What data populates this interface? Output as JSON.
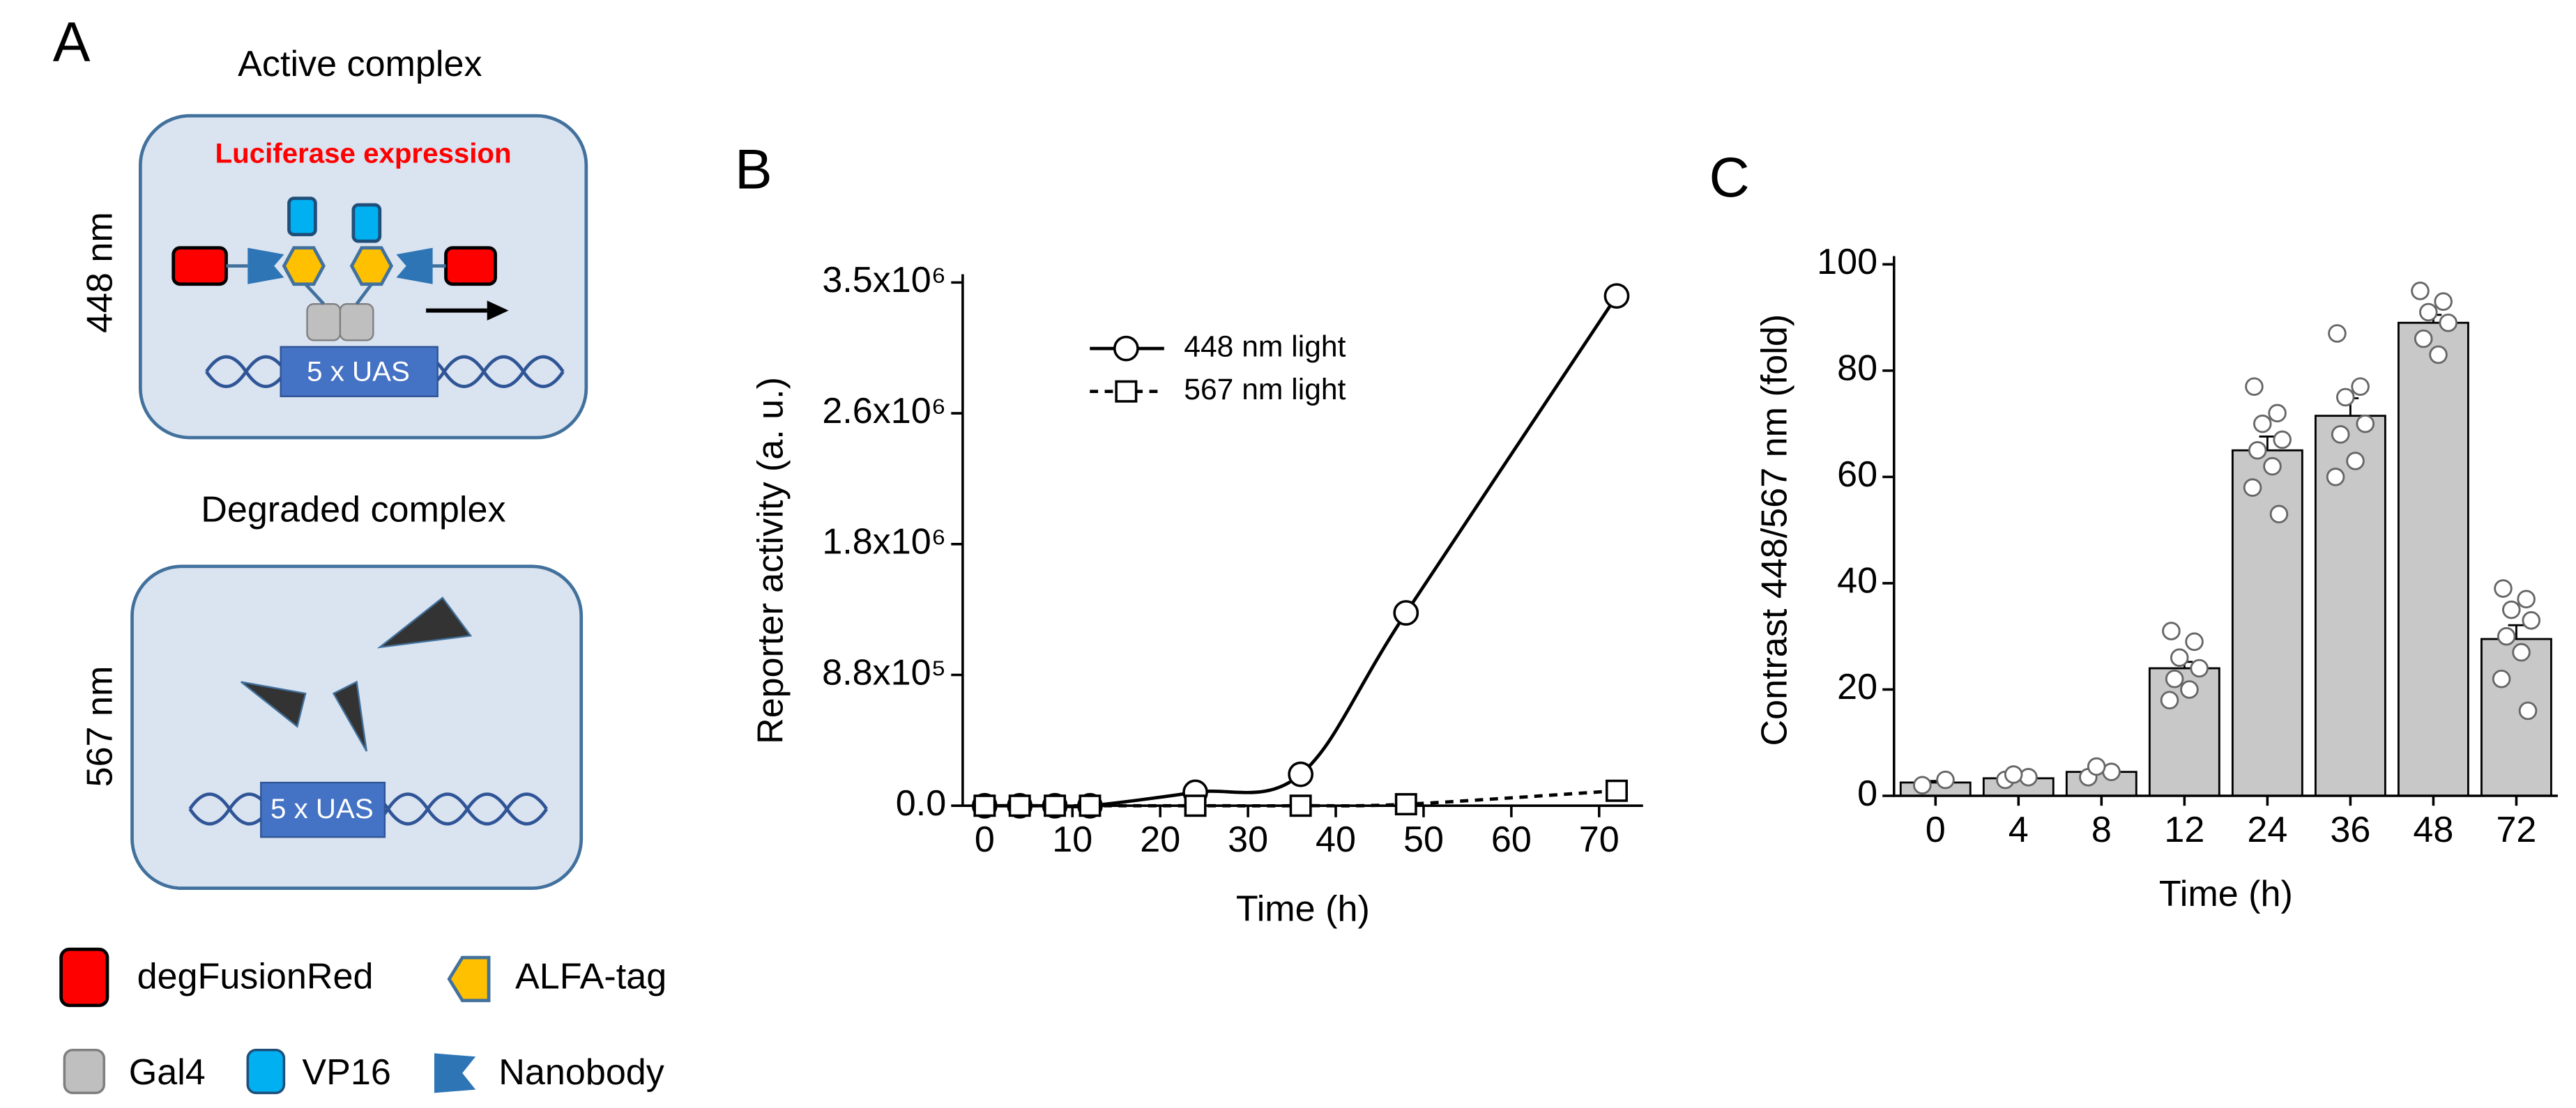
{
  "diagram": {
    "label": "A",
    "active_title": "Active complex",
    "active_wavelength": "448 nm",
    "expression": "Luciferase expression",
    "active_promoter": "5 x UAS",
    "degraded_title": "Degraded complex",
    "degraded_wavelength": "567 nm",
    "degraded_promoter": "5 x UAS",
    "legend": [
      "degFusionRed",
      "ALFA-tag",
      "Gal4",
      "VP16",
      "Nanobody"
    ]
  },
  "chart_data": [
    {
      "type": "line",
      "label": "B",
      "x_label": "Time (h)",
      "y_label": "Reporter activity (a. u.)",
      "x": [
        0,
        4,
        8,
        12,
        24,
        36,
        48,
        72
      ],
      "series": [
        {
          "name": "448 nm light",
          "color": "#000000",
          "marker": "circle",
          "line_style": "solid",
          "values": [
            0,
            0,
            0,
            0,
            90000,
            210000,
            1290000,
            3410000
          ]
        },
        {
          "name": "567 nm light",
          "color": "#000000",
          "marker": "square",
          "line_style": "dashed",
          "values": [
            0,
            0,
            0,
            0,
            0,
            0,
            10000,
            100000
          ]
        }
      ],
      "xlim": [
        -2.5,
        75
      ],
      "xticks": [
        0,
        10,
        20,
        30,
        40,
        50,
        60,
        70
      ],
      "ylim": [
        0,
        3500000
      ],
      "yticks": [
        {
          "value": 0,
          "label": "0.0"
        },
        {
          "value": 875000,
          "label": "8.8x10⁵"
        },
        {
          "value": 1750000,
          "label": "1.8x10⁶"
        },
        {
          "value": 2625000,
          "label": "2.6x10⁶"
        },
        {
          "value": 3500000,
          "label": "3.5x10⁶"
        }
      ],
      "legend": "upper center"
    },
    {
      "type": "bar",
      "label": "C",
      "x_label": "Time (h)",
      "y_label": "Contrast 448/567 nm (fold)",
      "categories": [
        "0",
        "4",
        "8",
        "12",
        "24",
        "36",
        "48",
        "72"
      ],
      "values": [
        2.5,
        3.3,
        4.5,
        24,
        65,
        71.5,
        89,
        29.5
      ],
      "errors": [
        0.3,
        0.3,
        0.4,
        1.2,
        2.6,
        3.3,
        1.5,
        2.6
      ],
      "points": [
        [
          2,
          3
        ],
        [
          3,
          3.5,
          4
        ],
        [
          3.5,
          4.5,
          5.5
        ],
        [
          31,
          29,
          26,
          24,
          22,
          20,
          18
        ],
        [
          77,
          72,
          70,
          67,
          65,
          62,
          58,
          53
        ],
        [
          87,
          77,
          75,
          70,
          68,
          63,
          60
        ],
        [
          95,
          93,
          91,
          89,
          86,
          83
        ],
        [
          39,
          37,
          35,
          33,
          30,
          27,
          22,
          16
        ]
      ],
      "color": "#c8c8c8",
      "ylim": [
        0,
        100
      ],
      "yticks": [
        0,
        20,
        40,
        60,
        80,
        100
      ]
    }
  ]
}
